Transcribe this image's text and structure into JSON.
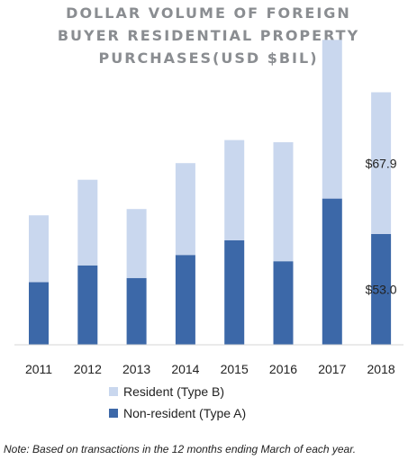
{
  "chart_data": {
    "type": "bar",
    "stacked": true,
    "title_lines": [
      "DOLLAR VOLUME OF FOREIGN",
      "BUYER RESIDENTIAL PROPERTY",
      "PURCHASES(USD $BIL)"
    ],
    "categories": [
      "2011",
      "2012",
      "2013",
      "2014",
      "2015",
      "2016",
      "2017",
      "2018"
    ],
    "series": [
      {
        "name": "Non-resident (Type A)",
        "color": "#3c68a8",
        "values": [
          30,
          38,
          32,
          43,
          50,
          40,
          70,
          53.0
        ]
      },
      {
        "name": "Resident (Type B)",
        "color": "#c9d7ee",
        "values": [
          32,
          41,
          33,
          44,
          48,
          57,
          76,
          67.9
        ]
      }
    ],
    "data_labels": [
      {
        "category": "2018",
        "series": "Resident (Type B)",
        "text": "$67.9"
      },
      {
        "category": "2018",
        "series": "Non-resident (Type A)",
        "text": "$53.0"
      }
    ],
    "ylim": [
      0,
      150
    ],
    "grid": false,
    "legend_position": "bottom-left",
    "legend": [
      "Resident (Type B)",
      "Non-resident (Type A)"
    ],
    "note": "Note: Based on transactions in the 12 months ending March of each year."
  }
}
